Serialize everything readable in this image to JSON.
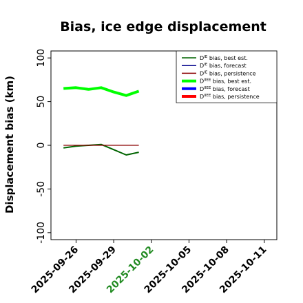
{
  "chart_data": {
    "type": "line",
    "title": "Bias, ice edge displacement",
    "ylabel": "Displacement bias (km)",
    "xlabel": "",
    "xlim": [
      "2025-09-24",
      "2025-10-12"
    ],
    "ylim": [
      -108,
      108
    ],
    "yticks": [
      -100,
      -50,
      0,
      50,
      100
    ],
    "xticks": [
      {
        "date": "2025-09-26",
        "label": "2025-09-26",
        "color": "#000000"
      },
      {
        "date": "2025-09-29",
        "label": "2025-09-29",
        "color": "#000000"
      },
      {
        "date": "2025-10-02",
        "label": "2025-10-02",
        "color": "#228B22"
      },
      {
        "date": "2025-10-05",
        "label": "2025-10-05",
        "color": "#000000"
      },
      {
        "date": "2025-10-08",
        "label": "2025-10-08",
        "color": "#000000"
      },
      {
        "date": "2025-10-11",
        "label": "2025-10-11",
        "color": "#000000"
      }
    ],
    "legend_position": "top-right",
    "series": [
      {
        "name": "D^IE bias, best est.",
        "base": "D",
        "sup": "IE",
        "rest": " bias, best est.",
        "color": "#006400",
        "width": 2,
        "legend_width": 1.5,
        "x": [
          "2025-09-25",
          "2025-09-26",
          "2025-09-27",
          "2025-09-28",
          "2025-09-29",
          "2025-09-30",
          "2025-10-01"
        ],
        "y": [
          -3,
          -1,
          0,
          1,
          -5,
          -11,
          -8
        ]
      },
      {
        "name": "D^IE bias, forecast",
        "base": "D",
        "sup": "IE",
        "rest": " bias, forecast",
        "color": "#00008B",
        "width": 1.5,
        "legend_width": 1.5,
        "x": [],
        "y": []
      },
      {
        "name": "D^IE bias, persistence",
        "base": "D",
        "sup": "IE",
        "rest": " bias, persistence",
        "color": "#8B0000",
        "width": 1.2,
        "legend_width": 1.5,
        "x": [
          "2025-09-25",
          "2025-10-01"
        ],
        "y": [
          0,
          0
        ]
      },
      {
        "name": "D^IIEE bias, best est.",
        "base": "D",
        "sup": "IIEE",
        "rest": " bias, best est.",
        "color": "#00FF00",
        "width": 4,
        "legend_width": 4,
        "x": [
          "2025-09-25",
          "2025-09-26",
          "2025-09-27",
          "2025-09-28",
          "2025-09-29",
          "2025-09-30",
          "2025-10-01"
        ],
        "y": [
          65,
          66,
          64,
          66,
          61,
          57,
          62
        ]
      },
      {
        "name": "D^IIEE bias, forecast",
        "base": "D",
        "sup": "IIEE",
        "rest": " bias, forecast",
        "color": "#0000FF",
        "width": 4,
        "legend_width": 4,
        "x": [],
        "y": []
      },
      {
        "name": "D^IIEE bias, persistence",
        "base": "D",
        "sup": "IIEE",
        "rest": " bias, persistence",
        "color": "#FF0000",
        "width": 4,
        "legend_width": 4,
        "x": [],
        "y": []
      }
    ]
  }
}
